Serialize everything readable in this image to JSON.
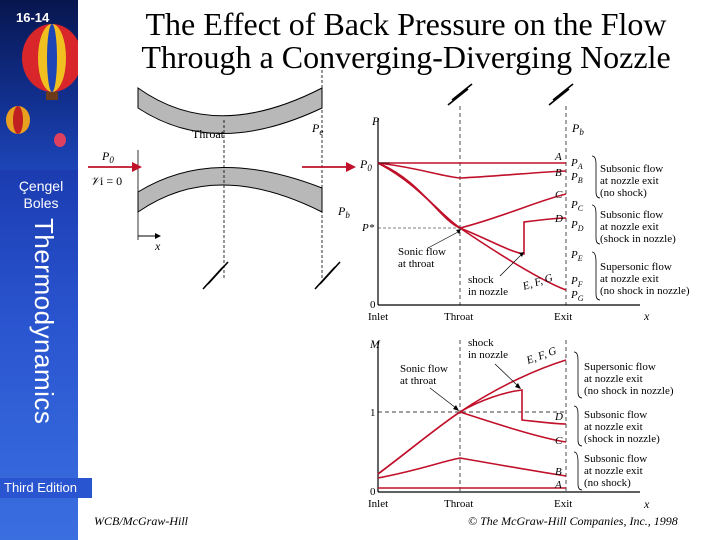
{
  "slide": {
    "number": "16-14",
    "title_line1": "The Effect of Back Pressure on the Flow",
    "title_line2": "Through a Converging-Diverging Nozzle"
  },
  "sidebar": {
    "author_line1": "Çengel",
    "author_line2": "Boles",
    "book": "Thermodynamics",
    "edition": "Third Edition"
  },
  "nozzle": {
    "throat": "Throat",
    "pe": "P",
    "pe_sub": "e",
    "p0": "P",
    "p0_sub": "0",
    "vi": "𝒱",
    "vi_eq": "i = 0",
    "pb": "P",
    "pb_sub": "b",
    "x": "x"
  },
  "pressure_plot": {
    "y_axis": "P",
    "x_axis": "x",
    "pb_label": "P",
    "pb_sub": "b",
    "p0": "P",
    "p0_sub": "0",
    "pstar": "P*",
    "zero": "0",
    "x_ticks": [
      "Inlet",
      "Throat",
      "Exit"
    ],
    "curve_letters": [
      "A",
      "B",
      "C",
      "D",
      "E",
      "F",
      "G"
    ],
    "pressure_labels": [
      {
        "p": "P",
        "sub": "A"
      },
      {
        "p": "P",
        "sub": "B"
      },
      {
        "p": "P",
        "sub": "C"
      },
      {
        "p": "P",
        "sub": "D"
      },
      {
        "p": "P",
        "sub": "E"
      },
      {
        "p": "P",
        "sub": "F"
      },
      {
        "p": "P",
        "sub": "G"
      }
    ],
    "sonic": [
      "Sonic flow",
      "at throat"
    ],
    "shock": [
      "shock",
      "in nozzle"
    ],
    "efg": "E, F, G",
    "notes": [
      [
        "Subsonic flow",
        "at nozzle exit",
        "(no shock)"
      ],
      [
        "Subsonic flow",
        "at nozzle exit",
        "(shock in nozzle)"
      ],
      [
        "Supersonic flow",
        "at nozzle exit",
        "(no shock in nozzle)"
      ]
    ]
  },
  "mach_plot": {
    "y_axis": "M",
    "x_axis": "x",
    "one": "1",
    "zero": "0",
    "x_ticks": [
      "Inlet",
      "Throat",
      "Exit"
    ],
    "sonic": [
      "Sonic flow",
      "at throat"
    ],
    "shock": [
      "shock",
      "in nozzle"
    ],
    "efg": "E, F, G",
    "letters": [
      "D",
      "C",
      "B",
      "A"
    ],
    "notes": [
      [
        "Supersonic flow",
        "at nozzle exit",
        "(no shock in nozzle)"
      ],
      [
        "Subsonic flow",
        "at nozzle exit",
        "(shock in nozzle)"
      ],
      [
        "Subsonic flow",
        "at nozzle exit",
        "(no shock)"
      ]
    ]
  },
  "footer": {
    "publisher": "WCB/McGraw-Hill",
    "copyright": "© The McGraw-Hill Companies, Inc., 1998"
  },
  "colors": {
    "curve": "#c0102a",
    "nozzle_wall": "#b8b8b8"
  }
}
